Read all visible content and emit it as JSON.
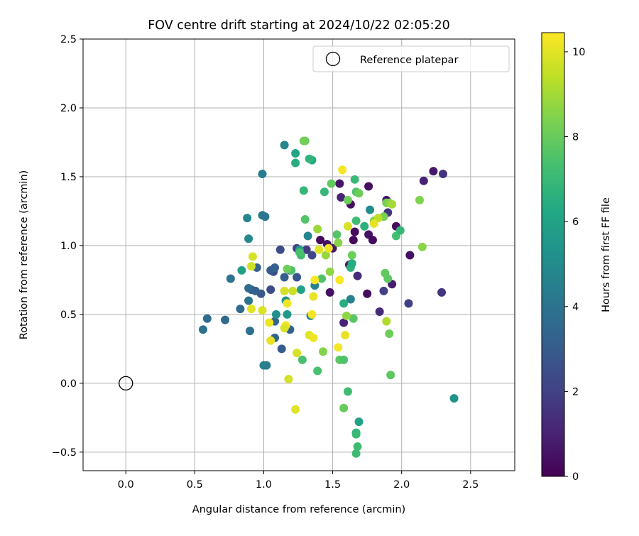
{
  "chart_data": {
    "type": "scatter",
    "title": "FOV centre drift starting at 2024/10/22 02:05:20",
    "xlabel": "Angular distance from reference (arcmin)",
    "ylabel": "Rotation from reference (arcmin)",
    "xlim": [
      -0.31,
      2.82
    ],
    "ylim": [
      -0.635,
      2.5
    ],
    "xticks": [
      0.0,
      0.5,
      1.0,
      1.5,
      2.0,
      2.5
    ],
    "xtick_labels": [
      "0.0",
      "0.5",
      "1.0",
      "1.5",
      "2.0",
      "2.5"
    ],
    "yticks": [
      -0.5,
      0.0,
      0.5,
      1.0,
      1.5,
      2.0,
      2.5
    ],
    "ytick_labels": [
      "−0.5",
      "0.0",
      "0.5",
      "1.0",
      "1.5",
      "2.0",
      "2.5"
    ],
    "grid": true,
    "legend": {
      "position": "top-right",
      "entries": [
        {
          "name": "Reference platepar",
          "marker": "open-circle"
        }
      ]
    },
    "reference_point": {
      "name": "Reference platepar",
      "x": 0.0,
      "y": 0.0
    },
    "colorbar": {
      "label": "Hours from first FF file",
      "colormap": "viridis",
      "min": 0,
      "max": 10.45,
      "ticks": [
        0,
        2,
        4,
        6,
        8,
        10
      ],
      "tick_labels": [
        "0",
        "2",
        "4",
        "6",
        "8",
        "10"
      ]
    },
    "points": [
      {
        "x": 1.41,
        "y": 1.04,
        "t": 0.2
      },
      {
        "x": 1.46,
        "y": 1.01,
        "t": 0.5
      },
      {
        "x": 1.5,
        "y": 0.98,
        "t": 0.7
      },
      {
        "x": 1.55,
        "y": 1.45,
        "t": 0.6
      },
      {
        "x": 1.56,
        "y": 1.35,
        "t": 1.0
      },
      {
        "x": 1.63,
        "y": 1.3,
        "t": 0.4
      },
      {
        "x": 1.66,
        "y": 1.1,
        "t": 0.3
      },
      {
        "x": 1.65,
        "y": 1.04,
        "t": 0.2
      },
      {
        "x": 1.62,
        "y": 0.86,
        "t": 0.8
      },
      {
        "x": 1.68,
        "y": 0.78,
        "t": 1.3
      },
      {
        "x": 1.76,
        "y": 1.08,
        "t": 0.5
      },
      {
        "x": 1.76,
        "y": 1.43,
        "t": 0.4
      },
      {
        "x": 1.79,
        "y": 1.04,
        "t": 0.3
      },
      {
        "x": 1.75,
        "y": 0.65,
        "t": 0.3
      },
      {
        "x": 1.48,
        "y": 0.66,
        "t": 0.5
      },
      {
        "x": 1.58,
        "y": 0.44,
        "t": 1.0
      },
      {
        "x": 1.89,
        "y": 1.33,
        "t": 0.6
      },
      {
        "x": 1.9,
        "y": 1.24,
        "t": 1.6
      },
      {
        "x": 1.93,
        "y": 0.72,
        "t": 0.8
      },
      {
        "x": 1.96,
        "y": 1.14,
        "t": 0.4
      },
      {
        "x": 1.84,
        "y": 0.52,
        "t": 1.3
      },
      {
        "x": 1.87,
        "y": 0.67,
        "t": 2.0
      },
      {
        "x": 2.06,
        "y": 0.93,
        "t": 0.5
      },
      {
        "x": 2.05,
        "y": 0.58,
        "t": 2.0
      },
      {
        "x": 2.16,
        "y": 1.47,
        "t": 1.0
      },
      {
        "x": 2.23,
        "y": 1.54,
        "t": 0.7
      },
      {
        "x": 2.3,
        "y": 1.52,
        "t": 1.5
      },
      {
        "x": 2.29,
        "y": 0.66,
        "t": 1.6
      },
      {
        "x": 1.31,
        "y": 0.97,
        "t": 1.8
      },
      {
        "x": 1.24,
        "y": 0.98,
        "t": 2.0
      },
      {
        "x": 1.35,
        "y": 0.93,
        "t": 2.2
      },
      {
        "x": 1.07,
        "y": 0.81,
        "t": 2.3
      },
      {
        "x": 1.05,
        "y": 0.68,
        "t": 2.4
      },
      {
        "x": 1.12,
        "y": 0.97,
        "t": 2.4
      },
      {
        "x": 0.98,
        "y": 0.65,
        "t": 2.9
      },
      {
        "x": 1.05,
        "y": 0.82,
        "t": 2.9
      },
      {
        "x": 1.08,
        "y": 0.84,
        "t": 3.2
      },
      {
        "x": 1.15,
        "y": 0.77,
        "t": 3.1
      },
      {
        "x": 1.19,
        "y": 0.82,
        "t": 3.0
      },
      {
        "x": 1.13,
        "y": 0.25,
        "t": 3.0
      },
      {
        "x": 1.24,
        "y": 0.77,
        "t": 2.8
      },
      {
        "x": 1.08,
        "y": 0.33,
        "t": 3.4
      },
      {
        "x": 0.91,
        "y": 0.68,
        "t": 3.1
      },
      {
        "x": 0.89,
        "y": 0.69,
        "t": 3.6
      },
      {
        "x": 0.94,
        "y": 0.67,
        "t": 3.2
      },
      {
        "x": 0.95,
        "y": 0.84,
        "t": 3.3
      },
      {
        "x": 1.08,
        "y": 0.45,
        "t": 3.4
      },
      {
        "x": 1.19,
        "y": 0.39,
        "t": 3.2
      },
      {
        "x": 0.9,
        "y": 0.38,
        "t": 3.9
      },
      {
        "x": 0.83,
        "y": 0.54,
        "t": 3.6
      },
      {
        "x": 0.89,
        "y": 0.6,
        "t": 4.0
      },
      {
        "x": 0.76,
        "y": 0.76,
        "t": 4.0
      },
      {
        "x": 0.72,
        "y": 0.46,
        "t": 3.6
      },
      {
        "x": 0.59,
        "y": 0.47,
        "t": 3.7
      },
      {
        "x": 0.56,
        "y": 0.39,
        "t": 3.9
      },
      {
        "x": 0.99,
        "y": 1.52,
        "t": 4.3
      },
      {
        "x": 0.99,
        "y": 1.22,
        "t": 4.2
      },
      {
        "x": 1.01,
        "y": 1.21,
        "t": 4.1
      },
      {
        "x": 0.88,
        "y": 1.2,
        "t": 4.8
      },
      {
        "x": 0.89,
        "y": 1.05,
        "t": 4.9
      },
      {
        "x": 1.0,
        "y": 0.13,
        "t": 4.6
      },
      {
        "x": 1.02,
        "y": 0.13,
        "t": 4.4
      },
      {
        "x": 1.15,
        "y": 1.73,
        "t": 4.8
      },
      {
        "x": 1.34,
        "y": 0.49,
        "t": 4.7
      },
      {
        "x": 1.37,
        "y": 0.71,
        "t": 4.6
      },
      {
        "x": 1.32,
        "y": 1.07,
        "t": 4.8
      },
      {
        "x": 1.63,
        "y": 0.61,
        "t": 4.6
      },
      {
        "x": 1.77,
        "y": 1.26,
        "t": 5.0
      },
      {
        "x": 2.38,
        "y": -0.11,
        "t": 5.3
      },
      {
        "x": 1.17,
        "y": 0.5,
        "t": 5.6
      },
      {
        "x": 1.09,
        "y": 0.5,
        "t": 5.2
      },
      {
        "x": 1.16,
        "y": 0.6,
        "t": 5.3
      },
      {
        "x": 1.26,
        "y": 0.97,
        "t": 5.6
      },
      {
        "x": 1.27,
        "y": 0.68,
        "t": 6.0
      },
      {
        "x": 0.84,
        "y": 0.82,
        "t": 5.9
      },
      {
        "x": 1.23,
        "y": 1.67,
        "t": 6.1
      },
      {
        "x": 1.23,
        "y": 1.6,
        "t": 6.5
      },
      {
        "x": 1.35,
        "y": 1.62,
        "t": 6.4
      },
      {
        "x": 1.33,
        "y": 1.63,
        "t": 6.8
      },
      {
        "x": 1.29,
        "y": 1.4,
        "t": 6.9
      },
      {
        "x": 1.44,
        "y": 1.39,
        "t": 6.9
      },
      {
        "x": 1.58,
        "y": 0.58,
        "t": 6.5
      },
      {
        "x": 1.63,
        "y": 0.84,
        "t": 6.7
      },
      {
        "x": 1.64,
        "y": 0.87,
        "t": 6.4
      },
      {
        "x": 1.69,
        "y": -0.28,
        "t": 6.0
      },
      {
        "x": 1.67,
        "y": -0.36,
        "t": 6.7
      },
      {
        "x": 1.67,
        "y": -0.37,
        "t": 7.0
      },
      {
        "x": 1.68,
        "y": -0.46,
        "t": 7.2
      },
      {
        "x": 1.67,
        "y": -0.51,
        "t": 7.1
      },
      {
        "x": 1.61,
        "y": -0.06,
        "t": 7.2
      },
      {
        "x": 1.66,
        "y": 1.48,
        "t": 7.0
      },
      {
        "x": 1.67,
        "y": 1.39,
        "t": 7.5
      },
      {
        "x": 1.73,
        "y": 1.14,
        "t": 6.6
      },
      {
        "x": 1.67,
        "y": 1.18,
        "t": 7.2
      },
      {
        "x": 1.96,
        "y": 1.07,
        "t": 7.3
      },
      {
        "x": 1.99,
        "y": 1.11,
        "t": 6.9
      },
      {
        "x": 1.27,
        "y": 0.93,
        "t": 7.2
      },
      {
        "x": 1.26,
        "y": 0.95,
        "t": 7.4
      },
      {
        "x": 1.2,
        "y": 0.82,
        "t": 7.5
      },
      {
        "x": 1.3,
        "y": 1.19,
        "t": 7.6
      },
      {
        "x": 1.28,
        "y": 0.17,
        "t": 7.4
      },
      {
        "x": 1.39,
        "y": 0.09,
        "t": 7.4
      },
      {
        "x": 1.42,
        "y": 0.76,
        "t": 7.5
      },
      {
        "x": 1.49,
        "y": 1.45,
        "t": 7.9
      },
      {
        "x": 1.53,
        "y": 1.08,
        "t": 7.6
      },
      {
        "x": 1.55,
        "y": 0.17,
        "t": 7.8
      },
      {
        "x": 1.58,
        "y": 0.17,
        "t": 7.5
      },
      {
        "x": 1.58,
        "y": -0.18,
        "t": 8.0
      },
      {
        "x": 1.61,
        "y": 1.33,
        "t": 8.1
      },
      {
        "x": 1.64,
        "y": 0.93,
        "t": 8.1
      },
      {
        "x": 1.65,
        "y": 0.47,
        "t": 7.7
      },
      {
        "x": 1.88,
        "y": 0.8,
        "t": 7.9
      },
      {
        "x": 1.9,
        "y": 0.76,
        "t": 7.8
      },
      {
        "x": 1.91,
        "y": 0.36,
        "t": 8.1
      },
      {
        "x": 1.92,
        "y": 0.06,
        "t": 7.8
      },
      {
        "x": 1.89,
        "y": 1.31,
        "t": 8.2
      },
      {
        "x": 1.91,
        "y": 1.31,
        "t": 8.5
      },
      {
        "x": 1.87,
        "y": 1.21,
        "t": 8.3
      },
      {
        "x": 1.69,
        "y": 1.38,
        "t": 8.1
      },
      {
        "x": 1.8,
        "y": 1.18,
        "t": 8.4
      },
      {
        "x": 1.3,
        "y": 1.76,
        "t": 8.0
      },
      {
        "x": 1.29,
        "y": 1.76,
        "t": 8.2
      },
      {
        "x": 1.17,
        "y": 0.83,
        "t": 8.1
      },
      {
        "x": 1.43,
        "y": 0.23,
        "t": 8.5
      },
      {
        "x": 1.39,
        "y": 1.12,
        "t": 8.9
      },
      {
        "x": 1.45,
        "y": 0.93,
        "t": 8.8
      },
      {
        "x": 1.48,
        "y": 0.81,
        "t": 8.7
      },
      {
        "x": 1.54,
        "y": 1.02,
        "t": 8.6
      },
      {
        "x": 1.6,
        "y": 0.49,
        "t": 8.7
      },
      {
        "x": 2.13,
        "y": 1.33,
        "t": 8.4
      },
      {
        "x": 2.15,
        "y": 0.99,
        "t": 8.6
      },
      {
        "x": 1.93,
        "y": 1.3,
        "t": 9.0
      },
      {
        "x": 1.89,
        "y": 0.45,
        "t": 9.2
      },
      {
        "x": 1.83,
        "y": 1.2,
        "t": 9.4
      },
      {
        "x": 1.21,
        "y": 0.67,
        "t": 9.6
      },
      {
        "x": 1.15,
        "y": 0.67,
        "t": 9.8
      },
      {
        "x": 0.92,
        "y": 0.92,
        "t": 9.8
      },
      {
        "x": 0.91,
        "y": 0.85,
        "t": 9.7
      },
      {
        "x": 0.91,
        "y": 0.54,
        "t": 10.0
      },
      {
        "x": 0.99,
        "y": 0.53,
        "t": 9.9
      },
      {
        "x": 1.04,
        "y": 0.44,
        "t": 10.2
      },
      {
        "x": 1.05,
        "y": 0.31,
        "t": 10.1
      },
      {
        "x": 1.16,
        "y": 0.42,
        "t": 10.3
      },
      {
        "x": 1.15,
        "y": 0.4,
        "t": 9.9
      },
      {
        "x": 1.17,
        "y": 0.58,
        "t": 10.2
      },
      {
        "x": 1.18,
        "y": 0.03,
        "t": 9.8
      },
      {
        "x": 1.23,
        "y": -0.19,
        "t": 10.0
      },
      {
        "x": 1.24,
        "y": 0.22,
        "t": 9.8
      },
      {
        "x": 1.33,
        "y": 0.35,
        "t": 10.0
      },
      {
        "x": 1.35,
        "y": 0.5,
        "t": 10.3
      },
      {
        "x": 1.36,
        "y": 0.63,
        "t": 10.1
      },
      {
        "x": 1.36,
        "y": 0.33,
        "t": 10.2
      },
      {
        "x": 1.37,
        "y": 0.75,
        "t": 10.4
      },
      {
        "x": 1.4,
        "y": 0.97,
        "t": 10.0
      },
      {
        "x": 1.47,
        "y": 0.98,
        "t": 10.2
      },
      {
        "x": 1.54,
        "y": 0.26,
        "t": 10.3
      },
      {
        "x": 1.55,
        "y": 0.75,
        "t": 10.4
      },
      {
        "x": 1.57,
        "y": 1.55,
        "t": 10.3
      },
      {
        "x": 1.59,
        "y": 0.35,
        "t": 10.1
      },
      {
        "x": 1.61,
        "y": 1.14,
        "t": 9.8
      },
      {
        "x": 1.8,
        "y": 1.16,
        "t": 10.1
      }
    ]
  }
}
